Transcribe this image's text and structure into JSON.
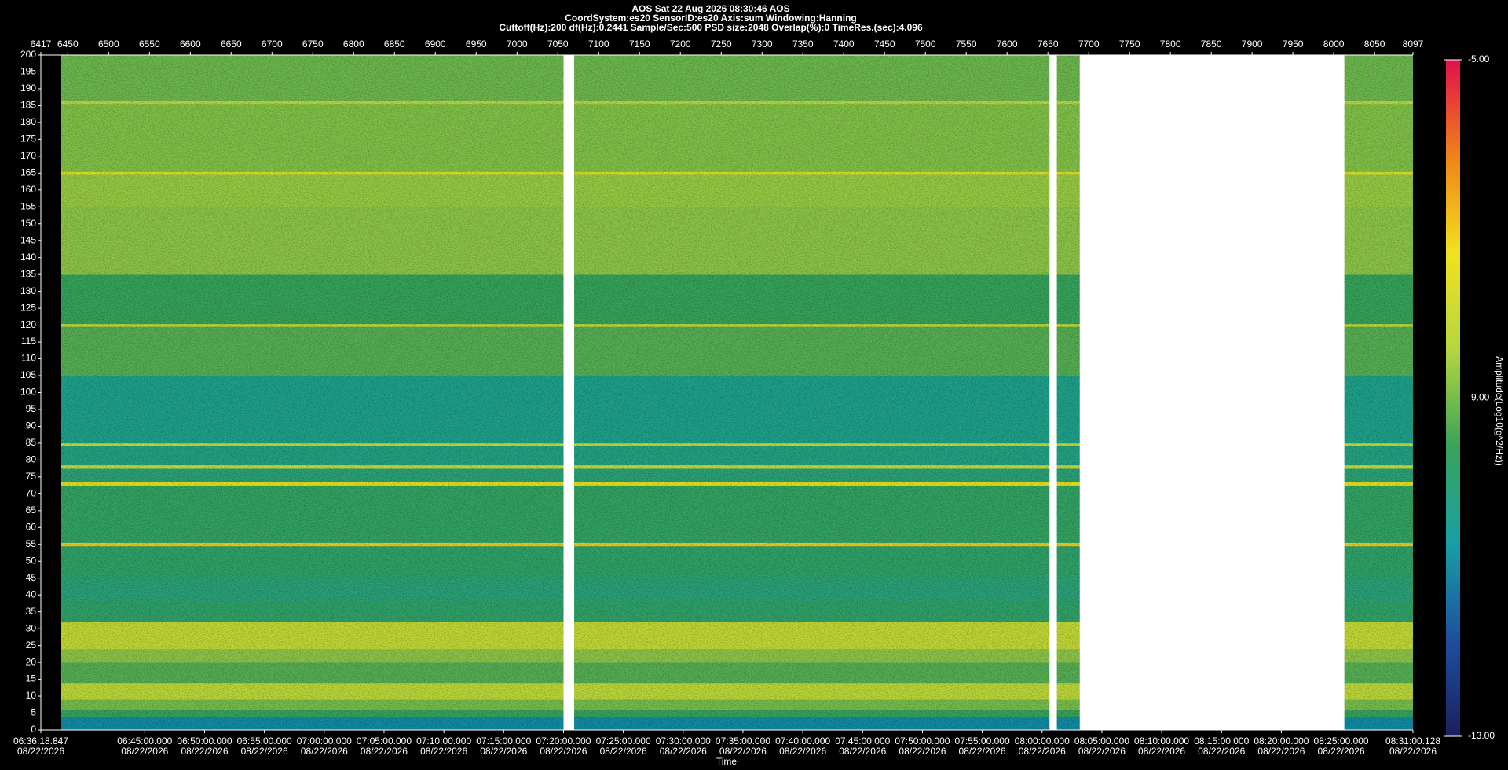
{
  "chart_data": {
    "type": "spectrogram",
    "title": "AOS  Sat 22 Aug 2026 08:30:46  AOS",
    "subtitle": "CoordSystem:es20    SensorID:es20     Axis:sum     Windowing:Hanning",
    "settings_line": "Cuttoff(Hz):200      df(Hz):0.2441      Sample/Sec:500      PSD size:2048      Overlap(%):0      TimeRes.(sec):4.096",
    "x_label": "Time",
    "colorbar_label": "Amplitude(Log10(g^2/Hz))",
    "xlim": [
      6417,
      8097
    ],
    "xticks": [
      6417,
      6450,
      6500,
      6550,
      6600,
      6650,
      6700,
      6750,
      6800,
      6850,
      6900,
      6950,
      7000,
      7050,
      7100,
      7150,
      7200,
      7250,
      7300,
      7350,
      7400,
      7450,
      7500,
      7550,
      7600,
      7650,
      7700,
      7750,
      7800,
      7850,
      7900,
      7950,
      8000,
      8050,
      8097
    ],
    "time_lim": [
      {
        "time": "06:36:18.847",
        "date": "08/22/2026"
      },
      {
        "time": "08:31:00.128",
        "date": "08/22/2026"
      }
    ],
    "time_ticks": [
      {
        "time": "06:45:00.000",
        "date": "08/22/2026"
      },
      {
        "time": "06:50:00.000",
        "date": "08/22/2026"
      },
      {
        "time": "06:55:00.000",
        "date": "08/22/2026"
      },
      {
        "time": "07:00:00.000",
        "date": "08/22/2026"
      },
      {
        "time": "07:05:00.000",
        "date": "08/22/2026"
      },
      {
        "time": "07:10:00.000",
        "date": "08/22/2026"
      },
      {
        "time": "07:15:00.000",
        "date": "08/22/2026"
      },
      {
        "time": "07:20:00.000",
        "date": "08/22/2026"
      },
      {
        "time": "07:25:00.000",
        "date": "08/22/2026"
      },
      {
        "time": "07:30:00.000",
        "date": "08/22/2026"
      },
      {
        "time": "07:35:00.000",
        "date": "08/22/2026"
      },
      {
        "time": "07:40:00.000",
        "date": "08/22/2026"
      },
      {
        "time": "07:45:00.000",
        "date": "08/22/2026"
      },
      {
        "time": "07:50:00.000",
        "date": "08/22/2026"
      },
      {
        "time": "07:55:00.000",
        "date": "08/22/2026"
      },
      {
        "time": "08:00:00.000",
        "date": "08/22/2026"
      },
      {
        "time": "08:05:00.000",
        "date": "08/22/2026"
      },
      {
        "time": "08:10:00.000",
        "date": "08/22/2026"
      },
      {
        "time": "08:15:00.000",
        "date": "08/22/2026"
      },
      {
        "time": "08:20:00.000",
        "date": "08/22/2026"
      },
      {
        "time": "08:25:00.000",
        "date": "08/22/2026"
      }
    ],
    "ylim": [
      0,
      200
    ],
    "yticks": [
      0,
      5,
      10,
      15,
      20,
      25,
      30,
      35,
      40,
      45,
      50,
      55,
      60,
      65,
      70,
      75,
      80,
      85,
      90,
      95,
      100,
      105,
      110,
      115,
      120,
      125,
      130,
      135,
      140,
      145,
      150,
      155,
      160,
      165,
      170,
      175,
      180,
      185,
      190,
      195,
      200
    ],
    "clim": [
      -13,
      -5
    ],
    "cticks": [
      {
        "value": -5,
        "label": "-5.00"
      },
      {
        "value": -9,
        "label": "-9.00"
      },
      {
        "value": -13,
        "label": "-13.00"
      }
    ],
    "colormap": [
      "#1b1f5e",
      "#1e4f9e",
      "#17a0a6",
      "#3aa35a",
      "#b5d63f",
      "#f2e21e",
      "#f08218",
      "#e0104c"
    ],
    "segments": [
      [
        6442,
        7057
      ],
      [
        7070,
        7652
      ],
      [
        7661,
        7689
      ],
      [
        8013,
        8097
      ]
    ],
    "bands": [
      {
        "from": 0,
        "to": 4,
        "level": -11
      },
      {
        "from": 4,
        "to": 6,
        "level": -9.6
      },
      {
        "from": 6,
        "to": 9,
        "level": -9
      },
      {
        "from": 9,
        "to": 14,
        "level": -8.3
      },
      {
        "from": 14,
        "to": 20,
        "level": -9.3
      },
      {
        "from": 20,
        "to": 24,
        "level": -8.8
      },
      {
        "from": 24,
        "to": 32,
        "level": -8.2
      },
      {
        "from": 32,
        "to": 38,
        "level": -9.8
      },
      {
        "from": 38,
        "to": 45,
        "level": -10
      },
      {
        "from": 45,
        "to": 54.5,
        "level": -9.8
      },
      {
        "from": 54.5,
        "to": 55.5,
        "level": -7
      },
      {
        "from": 55.5,
        "to": 72.5,
        "level": -9.7
      },
      {
        "from": 72.5,
        "to": 73.5,
        "level": -7.5
      },
      {
        "from": 73.5,
        "to": 77.5,
        "level": -10
      },
      {
        "from": 77.5,
        "to": 78.5,
        "level": -8
      },
      {
        "from": 78.5,
        "to": 84.3,
        "level": -10.2
      },
      {
        "from": 84.3,
        "to": 85,
        "level": -8
      },
      {
        "from": 85,
        "to": 105,
        "level": -10.3
      },
      {
        "from": 105,
        "to": 119.6,
        "level": -9.3
      },
      {
        "from": 119.6,
        "to": 120.4,
        "level": -8
      },
      {
        "from": 120.4,
        "to": 135,
        "level": -9.6
      },
      {
        "from": 135,
        "to": 155,
        "level": -8.8
      },
      {
        "from": 155,
        "to": 164.6,
        "level": -8.7
      },
      {
        "from": 164.6,
        "to": 165.4,
        "level": -7.6
      },
      {
        "from": 165.4,
        "to": 185.6,
        "level": -8.9
      },
      {
        "from": 185.6,
        "to": 186.4,
        "level": -8.3
      },
      {
        "from": 186.4,
        "to": 200,
        "level": -9.1
      }
    ]
  }
}
